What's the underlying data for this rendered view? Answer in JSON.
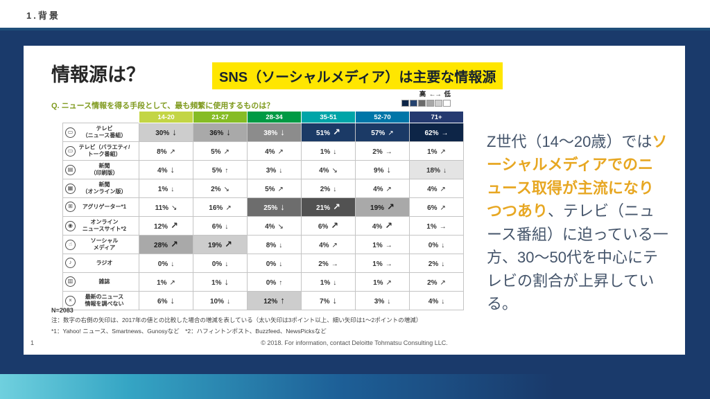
{
  "page": {
    "header_title": "1.背景",
    "footer_page": "1",
    "footer_copyright": "© 2018. For information, contact Deloitte Tohmatsu Consulting LLC."
  },
  "colors": {
    "navy_background": "#1a3a6b",
    "top_rule_blue": "#1f4e79",
    "headline_bg": "#ffe600",
    "commentary_highlight": "#e7a722",
    "question_green": "#7f9a1e",
    "commentary_text": "#44546a"
  },
  "slide": {
    "title": "情報源は？",
    "headline": "SNS（ソーシャルメディア）は主要な情報源",
    "n_label": "N=2083",
    "note1": "注：数字の右側の矢印は、2017年の値との比較した場合の増減を表している（太い矢印は3ポイント以上、細い矢印は1～2ポイントの増減）",
    "note2": "*1：Yahoo! ニュース、Smartnews、Gunosyなど　*2：ハフィントンポスト、Buzzfeed、NewsPicksなど",
    "legend": {
      "high": "高",
      "arrow": "←→",
      "low": "低",
      "swatches": [
        "#0d2547",
        "#24426e",
        "#6b6b6b",
        "#a8a8a8",
        "#cfcfcf",
        "#ffffff"
      ]
    },
    "commentary": {
      "pre": "Z世代（14～20歳）では",
      "highlight": "ソーシャルメディアでのニュース取得が主流になりつつあり",
      "post": "、テレビ（ニュース番組）に迫っている一方、30～50代を中心にテレビの割合が上昇している。"
    }
  },
  "chart_data": {
    "type": "heatmap",
    "question": "Q. ニュース情報を得る手段として、最も頻繁に使用するものは？",
    "sample_size": "N=2083",
    "arrow_legend": "thick arrow = change of 3+ points vs 2017, thin arrow = 1-2 point change",
    "columns": [
      {
        "label": "14-20",
        "color": "#c3d545"
      },
      {
        "label": "21-27",
        "color": "#86bc25"
      },
      {
        "label": "28-34",
        "color": "#009a44"
      },
      {
        "label": "35-51",
        "color": "#00a5a8"
      },
      {
        "label": "52-70",
        "color": "#0076a8"
      },
      {
        "label": "71+",
        "color": "#253a70"
      }
    ],
    "shades": {
      "w": [
        "#ffffff",
        "#333333"
      ],
      "g1": [
        "#e4e4e4",
        "#333333"
      ],
      "g2": [
        "#cdcdcd",
        "#222222"
      ],
      "g3": [
        "#a9a9a9",
        "#1a1a1a"
      ],
      "g4": [
        "#8c8c8c",
        "#ffffff"
      ],
      "g5": [
        "#6d6d6d",
        "#ffffff"
      ],
      "g6": [
        "#525252",
        "#ffffff"
      ],
      "n1": [
        "#1b3a66",
        "#ffffff"
      ],
      "n2": [
        "#0d2547",
        "#ffffff"
      ]
    },
    "rows": [
      {
        "icon_name": "tv-news-icon",
        "glyph": "▭",
        "lines": [
          "テレビ",
          "（ニュース番組）"
        ],
        "cells": [
          {
            "v": "30%",
            "a": "d",
            "w": "thick",
            "bg": "g2"
          },
          {
            "v": "36%",
            "a": "d",
            "w": "thick",
            "bg": "g3"
          },
          {
            "v": "38%",
            "a": "d",
            "w": "thick",
            "bg": "g4"
          },
          {
            "v": "51%",
            "a": "ur",
            "w": "thick",
            "bg": "n1"
          },
          {
            "v": "57%",
            "a": "ur",
            "w": "thin",
            "bg": "n1"
          },
          {
            "v": "62%",
            "a": "r",
            "w": "thin",
            "bg": "n2"
          }
        ]
      },
      {
        "icon_name": "tv-variety-icon",
        "glyph": "▭",
        "lines": [
          "テレビ（バラエティ/",
          "トーク番組）"
        ],
        "cells": [
          {
            "v": "8%",
            "a": "ur",
            "w": "thin",
            "bg": "w"
          },
          {
            "v": "5%",
            "a": "ur",
            "w": "thin",
            "bg": "w"
          },
          {
            "v": "4%",
            "a": "ur",
            "w": "thin",
            "bg": "w"
          },
          {
            "v": "1%",
            "a": "d",
            "w": "thin",
            "bg": "w"
          },
          {
            "v": "2%",
            "a": "r",
            "w": "thin",
            "bg": "w"
          },
          {
            "v": "1%",
            "a": "ur",
            "w": "thin",
            "bg": "w"
          }
        ]
      },
      {
        "icon_name": "newspaper-print-icon",
        "glyph": "▤",
        "lines": [
          "新聞",
          "（印刷版）"
        ],
        "cells": [
          {
            "v": "4%",
            "a": "d",
            "w": "thick",
            "bg": "w"
          },
          {
            "v": "5%",
            "a": "u",
            "w": "thin",
            "bg": "w"
          },
          {
            "v": "3%",
            "a": "d",
            "w": "thin",
            "bg": "w"
          },
          {
            "v": "4%",
            "a": "dr",
            "w": "thin",
            "bg": "w"
          },
          {
            "v": "9%",
            "a": "d",
            "w": "thick",
            "bg": "w"
          },
          {
            "v": "18%",
            "a": "d",
            "w": "thin",
            "bg": "g1"
          }
        ]
      },
      {
        "icon_name": "newspaper-online-icon",
        "glyph": "▦",
        "lines": [
          "新聞",
          "（オンライン版）"
        ],
        "cells": [
          {
            "v": "1%",
            "a": "d",
            "w": "thin",
            "bg": "w"
          },
          {
            "v": "2%",
            "a": "dr",
            "w": "thin",
            "bg": "w"
          },
          {
            "v": "5%",
            "a": "ur",
            "w": "thin",
            "bg": "w"
          },
          {
            "v": "2%",
            "a": "d",
            "w": "thin",
            "bg": "w"
          },
          {
            "v": "4%",
            "a": "ur",
            "w": "thin",
            "bg": "w"
          },
          {
            "v": "4%",
            "a": "ur",
            "w": "thin",
            "bg": "w"
          }
        ]
      },
      {
        "icon_name": "aggregator-icon",
        "glyph": "⊞",
        "lines": [
          "アグリゲーター*1"
        ],
        "cells": [
          {
            "v": "11%",
            "a": "dr",
            "w": "thin",
            "bg": "w"
          },
          {
            "v": "16%",
            "a": "ur",
            "w": "thin",
            "bg": "w"
          },
          {
            "v": "25%",
            "a": "d",
            "w": "thick",
            "bg": "g5"
          },
          {
            "v": "21%",
            "a": "ur",
            "w": "thick",
            "bg": "g6"
          },
          {
            "v": "19%",
            "a": "ur",
            "w": "thick",
            "bg": "g3"
          },
          {
            "v": "6%",
            "a": "ur",
            "w": "thin",
            "bg": "w"
          }
        ]
      },
      {
        "icon_name": "online-news-site-icon",
        "glyph": "◉",
        "lines": [
          "オンライン",
          "ニュースサイト*2"
        ],
        "cells": [
          {
            "v": "12%",
            "a": "ur",
            "w": "thick",
            "bg": "w"
          },
          {
            "v": "6%",
            "a": "d",
            "w": "thin",
            "bg": "w"
          },
          {
            "v": "4%",
            "a": "dr",
            "w": "thin",
            "bg": "w"
          },
          {
            "v": "6%",
            "a": "ur",
            "w": "thick",
            "bg": "w"
          },
          {
            "v": "4%",
            "a": "ur",
            "w": "thick",
            "bg": "w"
          },
          {
            "v": "1%",
            "a": "r",
            "w": "thin",
            "bg": "w"
          }
        ]
      },
      {
        "icon_name": "social-media-icon",
        "glyph": "☝",
        "lines": [
          "ソーシャル",
          "メディア"
        ],
        "cells": [
          {
            "v": "28%",
            "a": "ur",
            "w": "thick",
            "bg": "g3"
          },
          {
            "v": "19%",
            "a": "ur",
            "w": "thick",
            "bg": "g2"
          },
          {
            "v": "8%",
            "a": "d",
            "w": "thin",
            "bg": "w"
          },
          {
            "v": "4%",
            "a": "ur",
            "w": "thin",
            "bg": "w"
          },
          {
            "v": "1%",
            "a": "r",
            "w": "thin",
            "bg": "w"
          },
          {
            "v": "0%",
            "a": "d",
            "w": "thin",
            "bg": "w"
          }
        ]
      },
      {
        "icon_name": "radio-icon",
        "glyph": "♪",
        "lines": [
          "ラジオ"
        ],
        "cells": [
          {
            "v": "0%",
            "a": "d",
            "w": "thin",
            "bg": "w"
          },
          {
            "v": "0%",
            "a": "d",
            "w": "thin",
            "bg": "w"
          },
          {
            "v": "0%",
            "a": "d",
            "w": "thin",
            "bg": "w"
          },
          {
            "v": "2%",
            "a": "r",
            "w": "thin",
            "bg": "w"
          },
          {
            "v": "1%",
            "a": "r",
            "w": "thin",
            "bg": "w"
          },
          {
            "v": "2%",
            "a": "d",
            "w": "thin",
            "bg": "w"
          }
        ]
      },
      {
        "icon_name": "magazine-icon",
        "glyph": "▥",
        "lines": [
          "雑誌"
        ],
        "cells": [
          {
            "v": "1%",
            "a": "ur",
            "w": "thin",
            "bg": "w"
          },
          {
            "v": "1%",
            "a": "d",
            "w": "thick",
            "bg": "w"
          },
          {
            "v": "0%",
            "a": "u",
            "w": "thin",
            "bg": "w"
          },
          {
            "v": "1%",
            "a": "d",
            "w": "thin",
            "bg": "w"
          },
          {
            "v": "1%",
            "a": "ur",
            "w": "thin",
            "bg": "w"
          },
          {
            "v": "2%",
            "a": "ur",
            "w": "thin",
            "bg": "w"
          }
        ]
      },
      {
        "icon_name": "no-news-check-icon",
        "glyph": "×",
        "lines": [
          "最新のニュース",
          "情報を調べない"
        ],
        "cells": [
          {
            "v": "6%",
            "a": "d",
            "w": "thick",
            "bg": "w"
          },
          {
            "v": "10%",
            "a": "d",
            "w": "thin",
            "bg": "w"
          },
          {
            "v": "12%",
            "a": "u",
            "w": "thick",
            "bg": "g2"
          },
          {
            "v": "7%",
            "a": "d",
            "w": "thick",
            "bg": "w"
          },
          {
            "v": "3%",
            "a": "d",
            "w": "thin",
            "bg": "w"
          },
          {
            "v": "4%",
            "a": "d",
            "w": "thin",
            "bg": "w"
          }
        ]
      }
    ]
  }
}
